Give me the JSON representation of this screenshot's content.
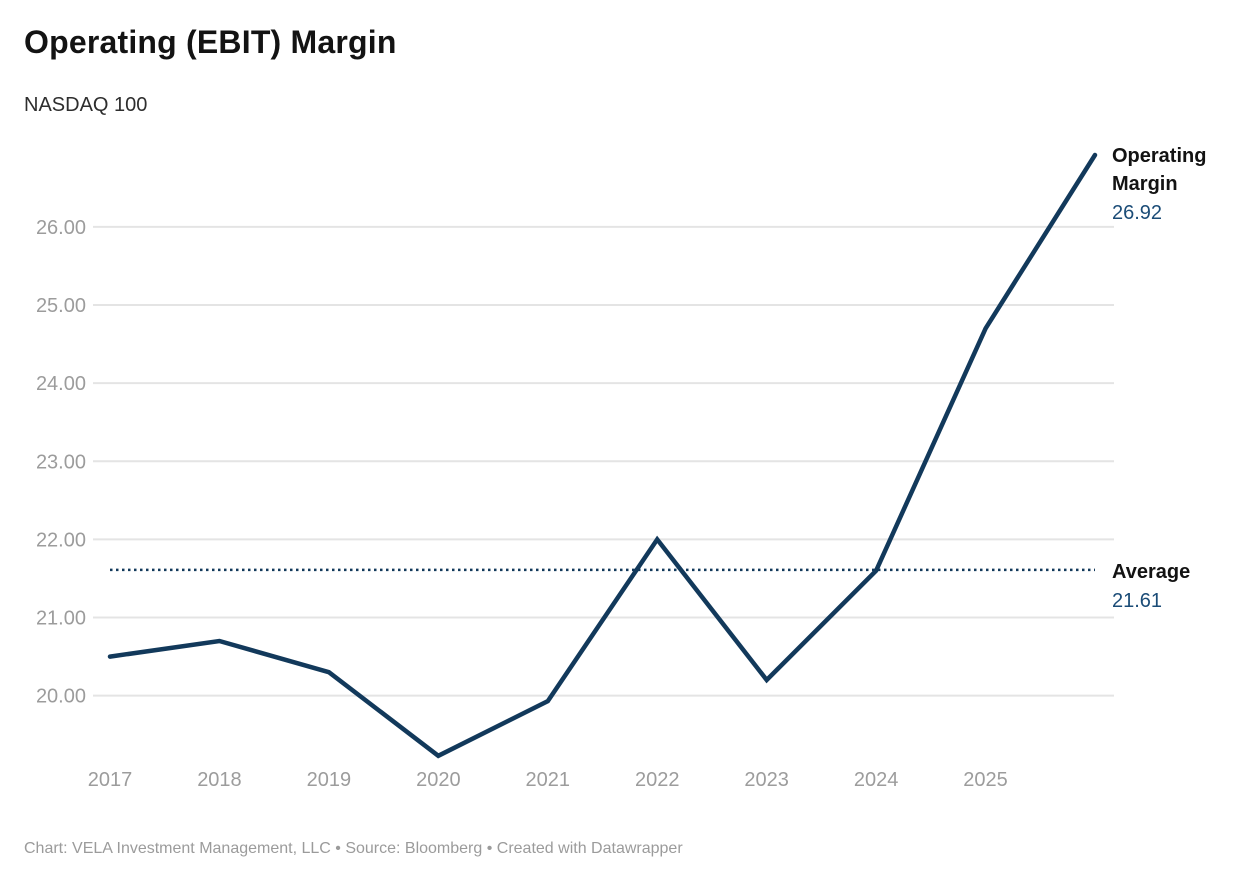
{
  "header": {
    "title": "Operating (EBIT) Margin",
    "subtitle": "NASDAQ 100"
  },
  "footer": {
    "attribution": "Chart: VELA Investment Management, LLC • Source: Bloomberg • Created with Datawrapper"
  },
  "colors": {
    "line": "#12395b",
    "average_line": "#12395b",
    "value_text": "#1b4c77",
    "grid": "#e4e4e4",
    "tick_text": "#9c9c9c",
    "annotation_label_text": "#131313"
  },
  "chart_data": {
    "type": "line",
    "title": "Operating (EBIT) Margin",
    "subtitle": "NASDAQ 100",
    "x": [
      2017,
      2018,
      2019,
      2020,
      2021,
      2022,
      2023,
      2024,
      2025,
      2026
    ],
    "series": [
      {
        "name": "Operating Margin",
        "values": [
          20.5,
          20.7,
          20.3,
          19.23,
          19.93,
          22.0,
          20.2,
          21.6,
          24.7,
          26.92
        ]
      }
    ],
    "x_tick_labels": [
      "2017",
      "2018",
      "2019",
      "2020",
      "2021",
      "2022",
      "2023",
      "2024",
      "2025"
    ],
    "y_ticks": [
      {
        "value": 20,
        "label": "20.00"
      },
      {
        "value": 21,
        "label": "21.00"
      },
      {
        "value": 22,
        "label": "22.00"
      },
      {
        "value": 23,
        "label": "23.00"
      },
      {
        "value": 24,
        "label": "24.00"
      },
      {
        "value": 25,
        "label": "25.00"
      },
      {
        "value": 26,
        "label": "26.00"
      }
    ],
    "ylim": [
      19.1,
      27.15
    ],
    "xlim": [
      2017,
      2026
    ],
    "grid": "horizontal",
    "legend_position": "right-edge annotations",
    "average_line": {
      "value": 21.61,
      "style": "dotted"
    },
    "annotations": {
      "line_end": {
        "label": "Operating Margin",
        "value": "26.92"
      },
      "average": {
        "label": "Average",
        "value": "21.61"
      }
    }
  }
}
